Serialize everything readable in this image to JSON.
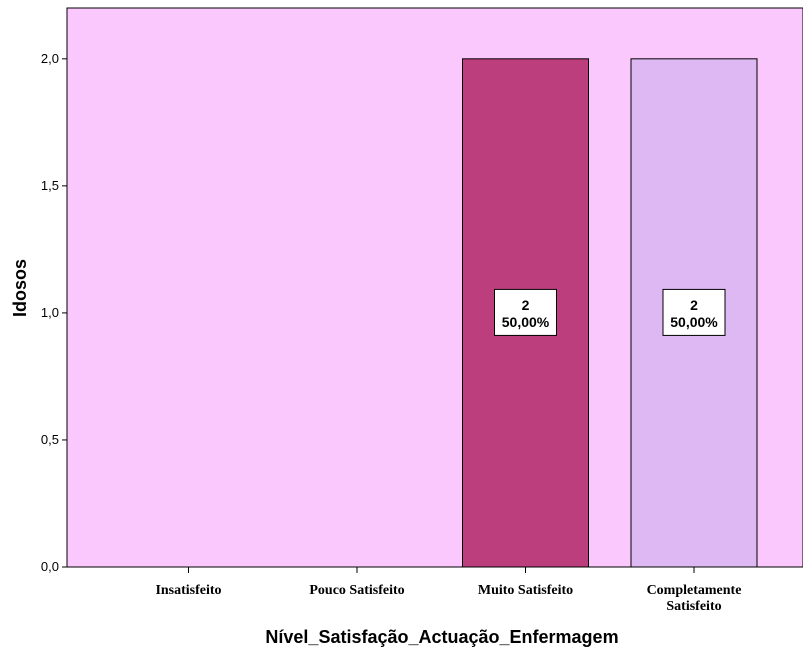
{
  "chart_data": {
    "type": "bar",
    "title": "",
    "xlabel": "Nível_Satisfação_Actuação_Enfermagem",
    "ylabel": "Idosos",
    "ylim": [
      0,
      2.2
    ],
    "yticks": [
      "0,0",
      "0,5",
      "1,0",
      "1,5",
      "2,0"
    ],
    "ytick_values": [
      0,
      0.5,
      1.0,
      1.5,
      2.0
    ],
    "grid": false,
    "categories": [
      [
        "Insatisfeito"
      ],
      [
        "Pouco Satisfeito"
      ],
      [
        "Muito Satisfeito"
      ],
      [
        "Completamente",
        "Satisfeito"
      ]
    ],
    "values": [
      0,
      0,
      2,
      2
    ],
    "data_labels": [
      null,
      null,
      {
        "count": "2",
        "percent": "50,00%"
      },
      {
        "count": "2",
        "percent": "50,00%"
      }
    ],
    "colors": {
      "plot_background": "#FBC8FD",
      "bars": [
        "#BD3E7D",
        "#BD3E7D",
        "#BD3E7D",
        "#DDB8F2"
      ],
      "bar_stroke": "#000000",
      "label_box": "#FFFFFF"
    }
  }
}
